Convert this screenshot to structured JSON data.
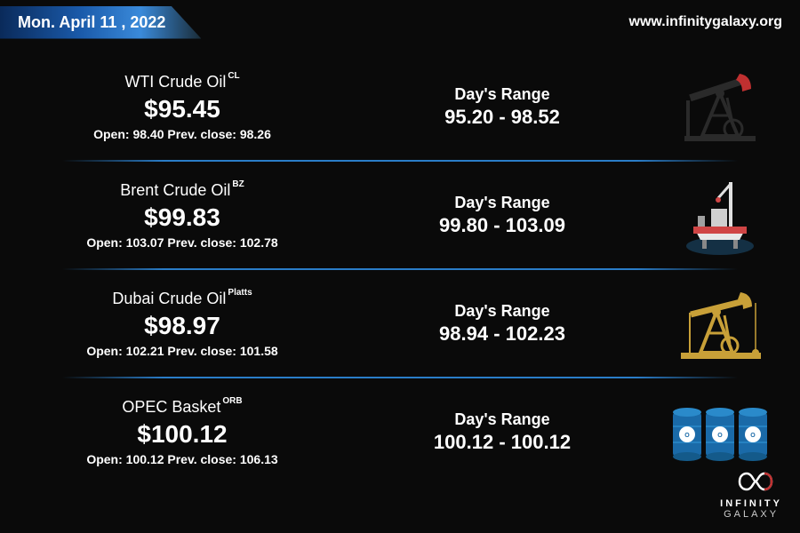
{
  "header": {
    "date": "Mon. April 11 , 2022",
    "site_url": "www.infinitygalaxy.org"
  },
  "labels": {
    "open": "Open:",
    "prev_close": "Prev. close:",
    "days_range": "Day's Range"
  },
  "colors": {
    "background": "#0a0a0a",
    "text": "#ffffff",
    "separator": "#2a7dc8",
    "date_gradient_start": "#0a2a5a",
    "date_gradient_mid": "#1a5aaa",
    "date_gradient_end": "#3a8ada",
    "opec_blue": "#1a6aa8",
    "platform_red": "#d04545",
    "pump_gold": "#c8a038",
    "pump_black": "#2a2a2a",
    "pump_red": "#c03030"
  },
  "logo": {
    "line1": "INFINITY",
    "line2": "GALAXY"
  },
  "items": [
    {
      "name": "WTI Crude Oil",
      "sup": "CL",
      "price": "$95.45",
      "open": "98.40",
      "prev_close": "98.26",
      "range": "95.20 - 98.52",
      "icon": "pumpjack-black"
    },
    {
      "name": "Brent Crude Oil",
      "sup": "BZ",
      "price": "$99.83",
      "open": "103.07",
      "prev_close": "102.78",
      "range": "99.80 - 103.09",
      "icon": "platform"
    },
    {
      "name": "Dubai Crude Oil",
      "sup": "Platts",
      "price": "$98.97",
      "open": "102.21",
      "prev_close": "101.58",
      "range": "98.94 - 102.23",
      "icon": "pumpjack-gold"
    },
    {
      "name": "OPEC Basket",
      "sup": "ORB",
      "price": "$100.12",
      "open": "100.12",
      "prev_close": "106.13",
      "range": "100.12 - 100.12",
      "icon": "barrels"
    }
  ]
}
